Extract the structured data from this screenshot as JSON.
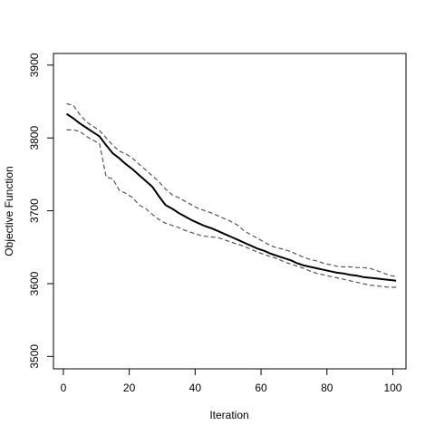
{
  "chart_data": {
    "type": "line",
    "title": "",
    "xlabel": "Iteration",
    "ylabel": "Objective Function",
    "xlim": [
      -3,
      104
    ],
    "ylim": [
      3483,
      3916
    ],
    "xticks": [
      0,
      20,
      40,
      60,
      80,
      100
    ],
    "yticks": [
      3500,
      3600,
      3700,
      3800,
      3900
    ],
    "grid": false,
    "legend": "none",
    "colors": {
      "mean": "#000000",
      "band": "#555555",
      "axis": "#000000"
    },
    "series": [
      {
        "role": "mean",
        "style": "solid",
        "x": [
          1,
          3,
          5,
          7,
          9,
          11,
          13,
          15,
          17,
          19,
          21,
          23,
          25,
          27,
          29,
          31,
          33,
          35,
          37,
          39,
          41,
          43,
          45,
          47,
          49,
          51,
          53,
          55,
          57,
          59,
          61,
          63,
          65,
          67,
          69,
          71,
          73,
          75,
          77,
          79,
          81,
          83,
          85,
          87,
          89,
          91,
          93,
          95,
          97,
          99,
          101
        ],
        "y": [
          3833,
          3827,
          3820,
          3814,
          3808,
          3802,
          3790,
          3779,
          3772,
          3764,
          3757,
          3749,
          3741,
          3733,
          3720,
          3708,
          3703,
          3697,
          3692,
          3687,
          3683,
          3679,
          3676,
          3672,
          3668,
          3664,
          3660,
          3656,
          3652,
          3648,
          3645,
          3641,
          3638,
          3635,
          3632,
          3628,
          3625,
          3623,
          3621,
          3619,
          3617,
          3615,
          3614,
          3612,
          3611,
          3609,
          3608,
          3607,
          3606,
          3605,
          3604
        ]
      },
      {
        "role": "upper",
        "style": "dashed",
        "x": [
          1,
          3,
          5,
          7,
          9,
          11,
          13,
          15,
          17,
          19,
          21,
          23,
          25,
          27,
          29,
          31,
          33,
          35,
          37,
          39,
          41,
          43,
          45,
          47,
          49,
          51,
          53,
          55,
          57,
          59,
          61,
          63,
          65,
          67,
          69,
          71,
          73,
          75,
          77,
          79,
          81,
          83,
          85,
          87,
          89,
          91,
          93,
          95,
          97,
          99,
          101
        ],
        "y": [
          3847,
          3845,
          3832,
          3822,
          3816,
          3810,
          3800,
          3790,
          3782,
          3778,
          3772,
          3764,
          3756,
          3748,
          3740,
          3730,
          3722,
          3718,
          3713,
          3708,
          3703,
          3700,
          3697,
          3693,
          3689,
          3685,
          3680,
          3672,
          3667,
          3662,
          3657,
          3652,
          3649,
          3647,
          3644,
          3640,
          3636,
          3633,
          3631,
          3628,
          3626,
          3624,
          3623,
          3623,
          3622,
          3622,
          3621,
          3618,
          3615,
          3611,
          3610
        ]
      },
      {
        "role": "lower",
        "style": "dashed",
        "x": [
          1,
          3,
          5,
          7,
          9,
          11,
          13,
          15,
          17,
          19,
          21,
          23,
          25,
          27,
          29,
          31,
          33,
          35,
          37,
          39,
          41,
          43,
          45,
          47,
          49,
          51,
          53,
          55,
          57,
          59,
          61,
          63,
          65,
          67,
          69,
          71,
          73,
          75,
          77,
          79,
          81,
          83,
          85,
          87,
          89,
          91,
          93,
          95,
          97,
          99,
          101
        ],
        "y": [
          3811,
          3811,
          3809,
          3802,
          3797,
          3792,
          3746,
          3744,
          3728,
          3724,
          3718,
          3708,
          3703,
          3695,
          3688,
          3683,
          3680,
          3677,
          3673,
          3670,
          3667,
          3665,
          3664,
          3663,
          3660,
          3657,
          3654,
          3651,
          3647,
          3643,
          3640,
          3637,
          3634,
          3630,
          3627,
          3624,
          3621,
          3617,
          3614,
          3612,
          3610,
          3608,
          3606,
          3604,
          3602,
          3600,
          3598,
          3597,
          3596,
          3595,
          3595
        ]
      }
    ]
  }
}
